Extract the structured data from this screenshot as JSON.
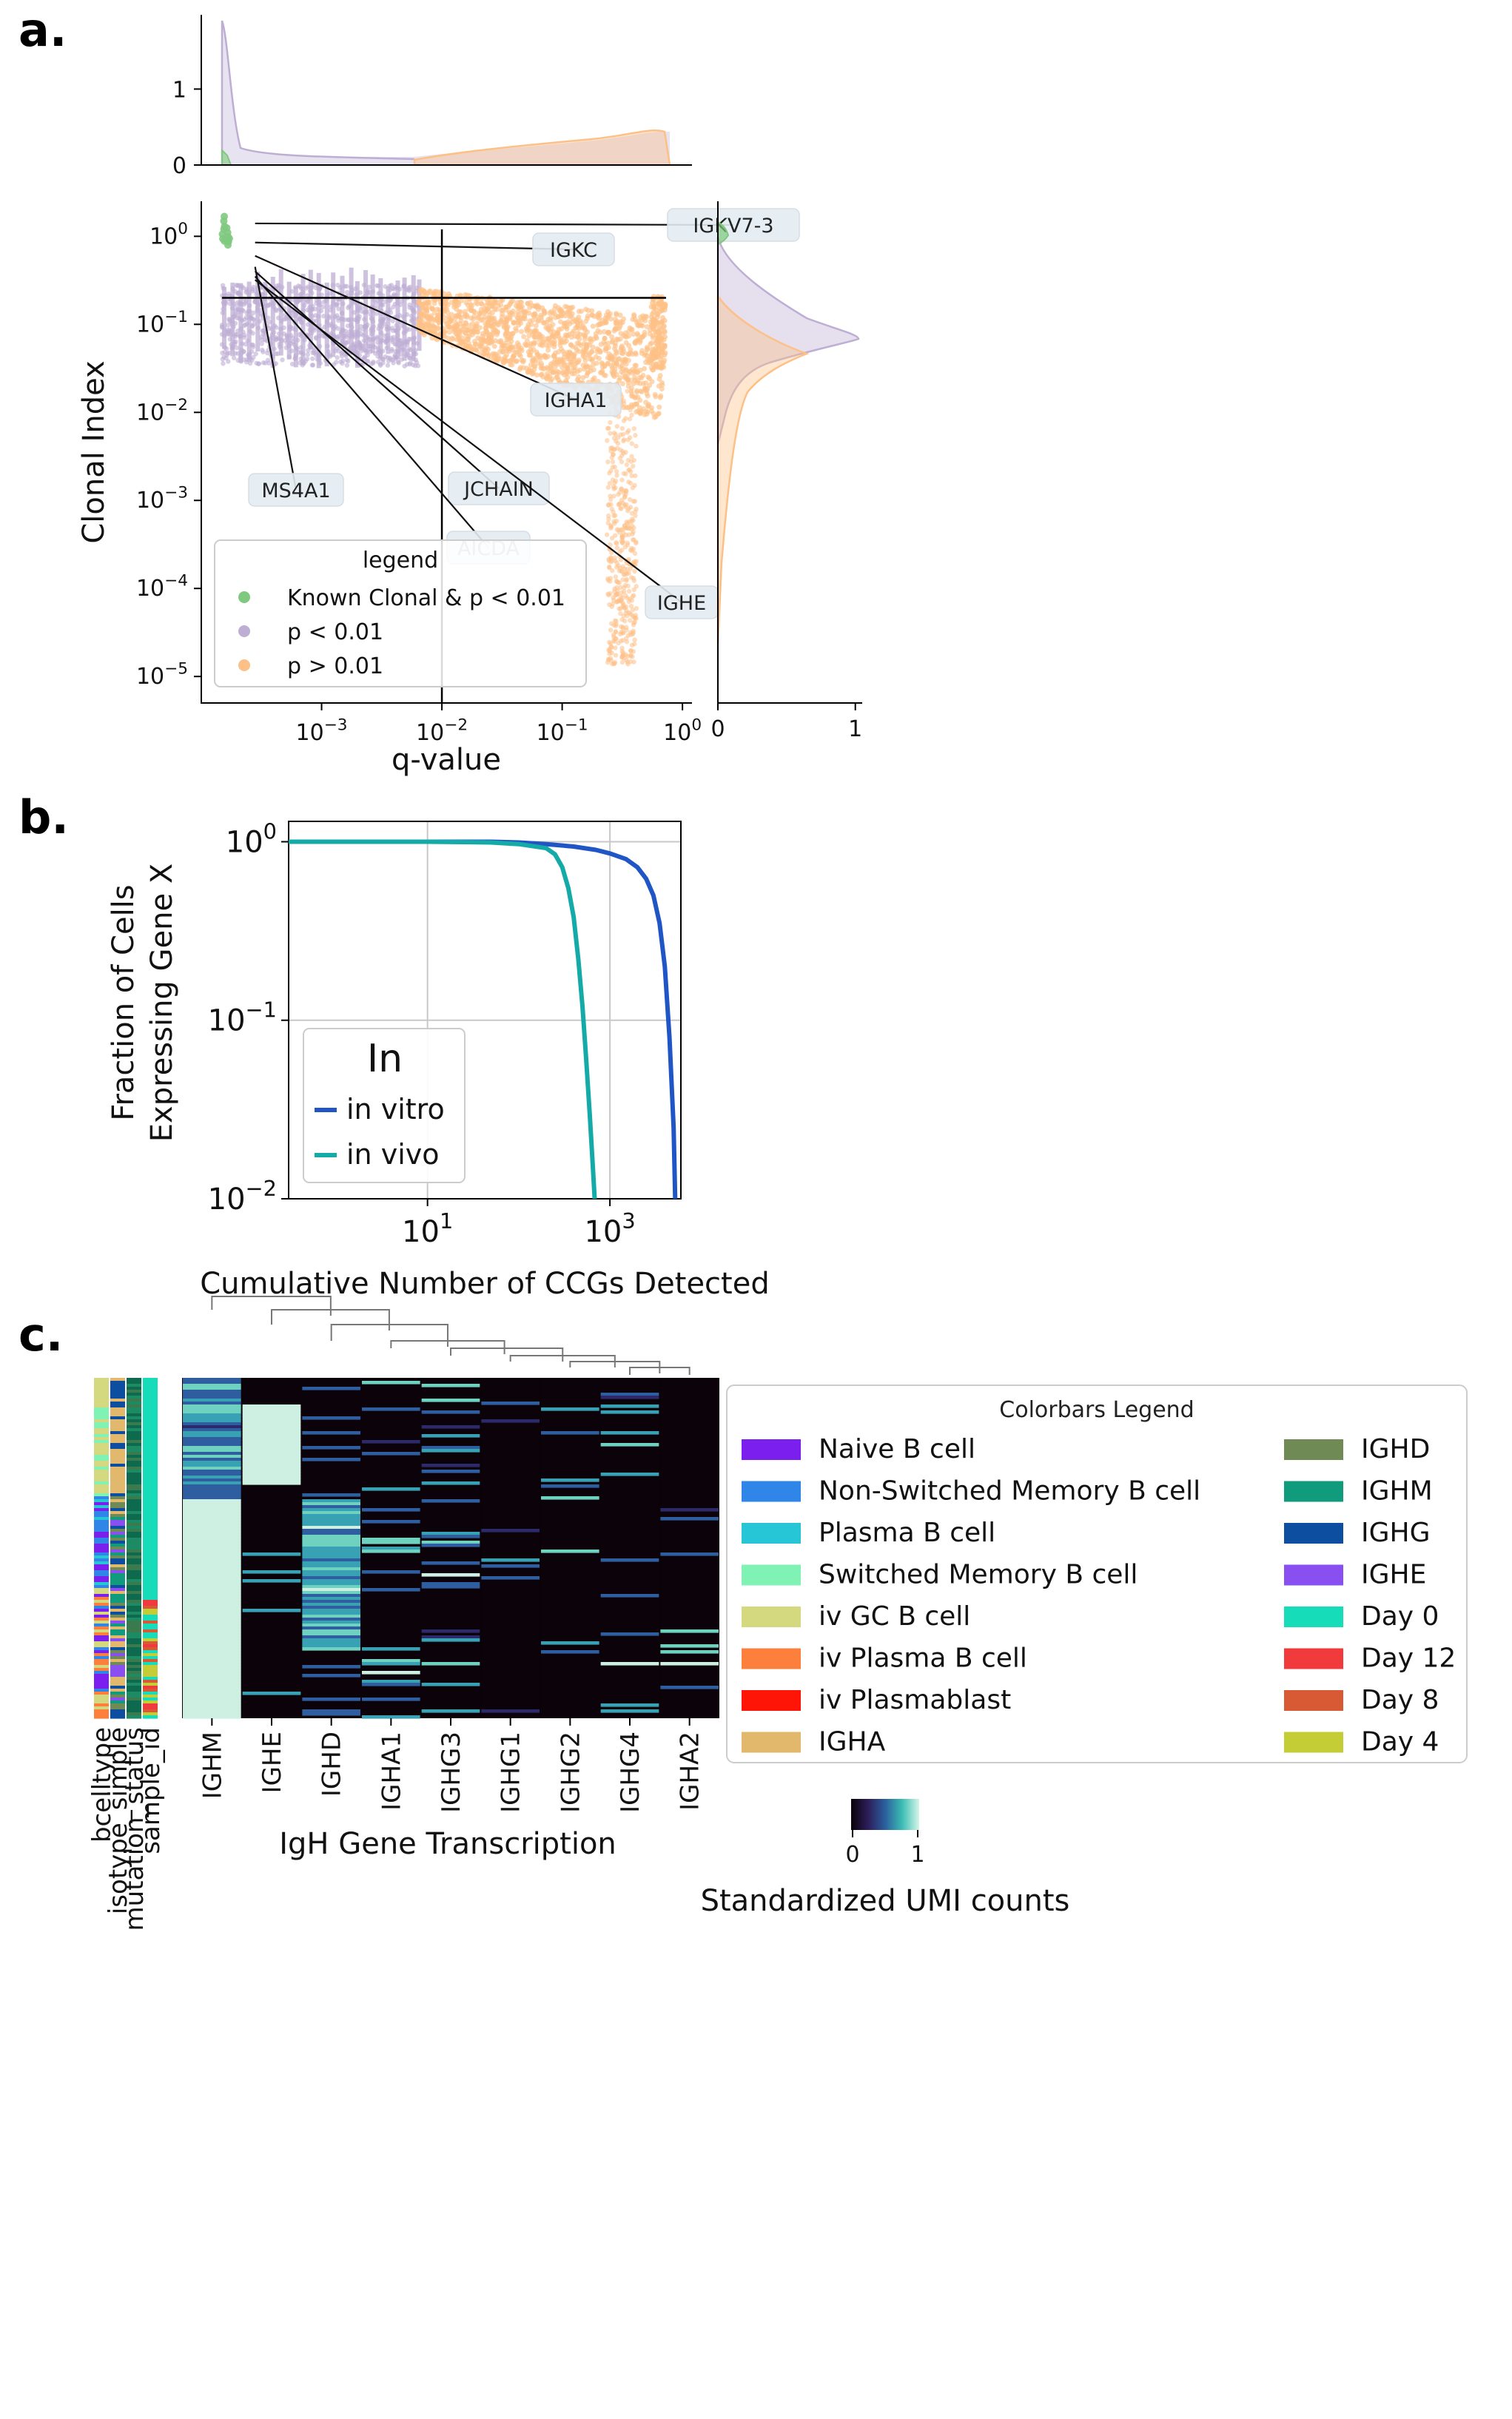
{
  "panel_labels": {
    "a": "a.",
    "b": "b.",
    "c": "c."
  },
  "chart_data": [
    {
      "id": "panel-a",
      "type": "scatter",
      "xlabel": "q-value",
      "ylabel": "Clonal Index",
      "xscale": "log",
      "yscale": "log",
      "xlim": [
        0.0001,
        1.2
      ],
      "ylim": [
        5e-06,
        2.5
      ],
      "xticks": [
        {
          "v": 0.001,
          "b": "10",
          "e": "−3"
        },
        {
          "v": 0.01,
          "b": "10",
          "e": "−2"
        },
        {
          "v": 0.1,
          "b": "10",
          "e": "−1"
        },
        {
          "v": 1,
          "b": "10",
          "e": "0"
        }
      ],
      "yticks": [
        {
          "v": 1,
          "b": "10",
          "e": "0"
        },
        {
          "v": 0.1,
          "b": "10",
          "e": "−1"
        },
        {
          "v": 0.01,
          "b": "10",
          "e": "−2"
        },
        {
          "v": 0.001,
          "b": "10",
          "e": "−3"
        },
        {
          "v": 0.0001,
          "b": "10",
          "e": "−4"
        },
        {
          "v": 1e-05,
          "b": "10",
          "e": "−5"
        }
      ],
      "threshold_lines": {
        "q": 0.01,
        "clonal_index": 0.2
      },
      "legend": {
        "title": "legend",
        "placement": "lower-left",
        "items": [
          {
            "label": "Known Clonal & p < 0.01",
            "color": "#7fc97f"
          },
          {
            "label": "p < 0.01",
            "color": "#beaed4"
          },
          {
            "label": "p > 0.01",
            "color": "#fdc086"
          }
        ]
      },
      "annotations": [
        {
          "label": "IGKV7-3",
          "q": 0.00028,
          "ci": 1.4
        },
        {
          "label": "IGKC",
          "q": 0.00028,
          "ci": 0.85
        },
        {
          "label": "IGHA1",
          "q": 0.00028,
          "ci": 0.6
        },
        {
          "label": "MS4A1",
          "q": 0.00028,
          "ci": 0.45
        },
        {
          "label": "JCHAIN",
          "q": 0.00028,
          "ci": 0.4
        },
        {
          "label": "AICDA",
          "q": 0.00028,
          "ci": 0.35
        },
        {
          "label": "IGHE",
          "q": 0.00028,
          "ci": 0.32
        }
      ],
      "top_marginal": {
        "yticks": [
          {
            "v": 0,
            "t": "0"
          },
          {
            "v": 1,
            "t": "1"
          }
        ],
        "ylim": [
          0,
          1.9
        ]
      },
      "right_marginal": {
        "xticks": [
          {
            "v": 0,
            "t": "0"
          },
          {
            "v": 1,
            "t": "1"
          }
        ],
        "xlim": [
          0,
          1.05
        ]
      }
    },
    {
      "id": "panel-b",
      "type": "line",
      "xlabel": "Cumulative Number of CCGs Detected",
      "ylabel_lines": [
        "Fraction of Cells",
        "Expressing Gene X"
      ],
      "xscale": "log",
      "yscale": "log",
      "xlim": [
        0.3,
        6000
      ],
      "ylim": [
        0.01,
        1.3
      ],
      "xticks": [
        {
          "v": 10,
          "b": "10",
          "e": "1"
        },
        {
          "v": 1000,
          "b": "10",
          "e": "3"
        }
      ],
      "yticks": [
        {
          "v": 1,
          "b": "10",
          "e": "0"
        },
        {
          "v": 0.1,
          "b": "10",
          "e": "−1"
        },
        {
          "v": 0.01,
          "b": "10",
          "e": "−2"
        }
      ],
      "grid": true,
      "legend": {
        "title": "In",
        "placement": "lower-left"
      },
      "series": [
        {
          "name": "in vitro",
          "color": "#1f55c4",
          "x": [
            0.3,
            1,
            10,
            50,
            100,
            200,
            400,
            700,
            1000,
            1500,
            2000,
            2500,
            3000,
            3500,
            4000,
            4500,
            5000,
            5200
          ],
          "y": [
            1,
            1,
            1,
            1,
            0.99,
            0.97,
            0.94,
            0.9,
            0.86,
            0.8,
            0.72,
            0.62,
            0.5,
            0.35,
            0.2,
            0.08,
            0.025,
            0.01
          ]
        },
        {
          "name": "in vivo",
          "color": "#14aaa8",
          "x": [
            0.3,
            1,
            10,
            50,
            100,
            200,
            250,
            300,
            350,
            400,
            450,
            500,
            550,
            600,
            650,
            680
          ],
          "y": [
            1,
            1,
            1,
            0.99,
            0.97,
            0.92,
            0.85,
            0.72,
            0.55,
            0.38,
            0.22,
            0.12,
            0.06,
            0.03,
            0.015,
            0.01
          ]
        }
      ]
    },
    {
      "id": "panel-c",
      "type": "heatmap",
      "columns": [
        "IGHM",
        "IGHE",
        "IGHD",
        "IGHA1",
        "IGHG3",
        "IGHG1",
        "IGHG2",
        "IGHG4",
        "IGHA2"
      ],
      "colorbar_tracks": [
        "bcelltype",
        "isotype_simple",
        "mutation_status",
        "sample_id"
      ],
      "xlabel": "IgH Gene Transcription",
      "colorbar": {
        "label": "Standardized UMI counts",
        "min": "0",
        "max": "1"
      },
      "legend": {
        "title": "Colorbars Legend",
        "items": [
          {
            "label": "Naive B cell",
            "color": "#7a1fee"
          },
          {
            "label": "Non-Switched Memory B cell",
            "color": "#2f86e8"
          },
          {
            "label": "Plasma B cell",
            "color": "#26c6d6"
          },
          {
            "label": "Switched Memory B cell",
            "color": "#7ff2b4"
          },
          {
            "label": "iv GC B cell",
            "color": "#d4d87e"
          },
          {
            "label": "iv Plasma B cell",
            "color": "#fd7f3c"
          },
          {
            "label": "iv Plasmablast",
            "color": "#ff1408"
          },
          {
            "label": "IGHA",
            "color": "#e2b86d"
          },
          {
            "label": "IGHD",
            "color": "#708a55"
          },
          {
            "label": "IGHM",
            "color": "#109c7c"
          },
          {
            "label": "IGHG",
            "color": "#0e4ea0"
          },
          {
            "label": "IGHE",
            "color": "#8a4ff0"
          },
          {
            "label": "Day 0",
            "color": "#16dcba"
          },
          {
            "label": "Day 12",
            "color": "#f03a3c"
          },
          {
            "label": "Day 8",
            "color": "#d85a34"
          },
          {
            "label": "Day 4",
            "color": "#c4cc36"
          }
        ]
      },
      "column_mean_expression": [
        0.85,
        0.22,
        0.3,
        0.12,
        0.15,
        0.06,
        0.08,
        0.07,
        0.05
      ]
    }
  ]
}
